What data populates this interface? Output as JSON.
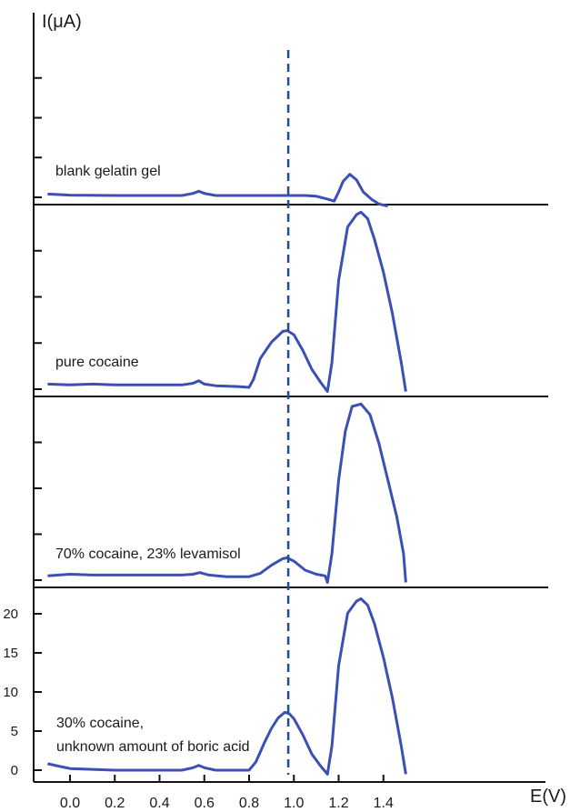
{
  "chart_data": {
    "type": "line",
    "ylabel": "I(μA)",
    "xlabel": "E(V)",
    "xlim": [
      -0.1,
      1.53
    ],
    "ylim": [
      -1.5,
      23
    ],
    "x_ticks": [
      "0.0",
      "0.2",
      "0.4",
      "0.6",
      "0.8",
      "1.0",
      "1.2",
      "1.4"
    ],
    "y_ticks": [
      "0",
      "5",
      "10",
      "15",
      "20"
    ],
    "marker_line_x": 0.975,
    "colors": {
      "trace": "#3c50b4",
      "marker": "#1f4e8c",
      "axis": "#111111"
    },
    "panels": [
      {
        "label": "blank gelatin gel",
        "points": [
          [
            -0.1,
            0.2
          ],
          [
            0,
            0.05
          ],
          [
            0.2,
            0
          ],
          [
            0.4,
            0
          ],
          [
            0.5,
            0
          ],
          [
            0.55,
            0.3
          ],
          [
            0.575,
            0.6
          ],
          [
            0.6,
            0.3
          ],
          [
            0.65,
            0
          ],
          [
            0.8,
            0
          ],
          [
            0.9,
            0
          ],
          [
            1.0,
            0
          ],
          [
            1.05,
            0
          ],
          [
            1.1,
            -0.1
          ],
          [
            1.15,
            -0.5
          ],
          [
            1.18,
            -0.8
          ],
          [
            1.2,
            0.5
          ],
          [
            1.22,
            2.0
          ],
          [
            1.25,
            3.0
          ],
          [
            1.28,
            2.2
          ],
          [
            1.31,
            0.5
          ],
          [
            1.35,
            -0.6
          ],
          [
            1.38,
            -1.2
          ],
          [
            1.42,
            -1.5
          ]
        ]
      },
      {
        "label": "pure cocaine",
        "points": [
          [
            -0.1,
            0.4
          ],
          [
            0,
            0.3
          ],
          [
            0.1,
            0.4
          ],
          [
            0.2,
            0.3
          ],
          [
            0.3,
            0.3
          ],
          [
            0.4,
            0.3
          ],
          [
            0.5,
            0.3
          ],
          [
            0.55,
            0.5
          ],
          [
            0.575,
            0.8
          ],
          [
            0.6,
            0.4
          ],
          [
            0.65,
            0.2
          ],
          [
            0.75,
            0.1
          ],
          [
            0.8,
            0
          ],
          [
            0.82,
            1
          ],
          [
            0.85,
            3.5
          ],
          [
            0.9,
            5.5
          ],
          [
            0.95,
            6.8
          ],
          [
            0.97,
            6.9
          ],
          [
            1.0,
            6.4
          ],
          [
            1.04,
            4.5
          ],
          [
            1.08,
            2.2
          ],
          [
            1.12,
            0.6
          ],
          [
            1.15,
            -0.5
          ],
          [
            1.17,
            3
          ],
          [
            1.2,
            13
          ],
          [
            1.24,
            19.5
          ],
          [
            1.28,
            21
          ],
          [
            1.3,
            21.3
          ],
          [
            1.33,
            20.5
          ],
          [
            1.36,
            18
          ],
          [
            1.4,
            14
          ],
          [
            1.44,
            9
          ],
          [
            1.48,
            3
          ],
          [
            1.5,
            -0.5
          ]
        ]
      },
      {
        "label": "70% cocaine, 23% levamisol",
        "points": [
          [
            -0.1,
            0.3
          ],
          [
            0,
            0.5
          ],
          [
            0.1,
            0.4
          ],
          [
            0.2,
            0.4
          ],
          [
            0.3,
            0.4
          ],
          [
            0.4,
            0.4
          ],
          [
            0.5,
            0.4
          ],
          [
            0.55,
            0.5
          ],
          [
            0.58,
            0.7
          ],
          [
            0.62,
            0.4
          ],
          [
            0.7,
            0.2
          ],
          [
            0.8,
            0.2
          ],
          [
            0.85,
            0.6
          ],
          [
            0.9,
            1.6
          ],
          [
            0.95,
            2.4
          ],
          [
            0.97,
            2.5
          ],
          [
            1.0,
            2.1
          ],
          [
            1.05,
            1.0
          ],
          [
            1.1,
            0.5
          ],
          [
            1.14,
            0.3
          ],
          [
            1.15,
            -0.5
          ],
          [
            1.17,
            3
          ],
          [
            1.2,
            12
          ],
          [
            1.23,
            18
          ],
          [
            1.26,
            21
          ],
          [
            1.3,
            21.3
          ],
          [
            1.34,
            20
          ],
          [
            1.38,
            16.5
          ],
          [
            1.42,
            12
          ],
          [
            1.46,
            7.5
          ],
          [
            1.49,
            3
          ],
          [
            1.5,
            -0.5
          ]
        ]
      },
      {
        "label": "30% cocaine, unknown amount of boric acid",
        "label_line1": "30% cocaine,",
        "label_line2": "unknown amount of boric acid",
        "points": [
          [
            -0.1,
            0.8
          ],
          [
            -0.05,
            0.5
          ],
          [
            0,
            0.2
          ],
          [
            0.1,
            0.1
          ],
          [
            0.2,
            0
          ],
          [
            0.3,
            0
          ],
          [
            0.4,
            0
          ],
          [
            0.5,
            0
          ],
          [
            0.55,
            0.3
          ],
          [
            0.575,
            0.6
          ],
          [
            0.6,
            0.3
          ],
          [
            0.65,
            0
          ],
          [
            0.75,
            0
          ],
          [
            0.8,
            0
          ],
          [
            0.83,
            1
          ],
          [
            0.87,
            3.5
          ],
          [
            0.9,
            5.2
          ],
          [
            0.93,
            6.5
          ],
          [
            0.96,
            7.2
          ],
          [
            0.98,
            7.0
          ],
          [
            1.0,
            6.4
          ],
          [
            1.04,
            4.4
          ],
          [
            1.08,
            2.0
          ],
          [
            1.12,
            0.5
          ],
          [
            1.15,
            -0.5
          ],
          [
            1.17,
            3
          ],
          [
            1.2,
            13
          ],
          [
            1.24,
            19.5
          ],
          [
            1.28,
            21
          ],
          [
            1.3,
            21.3
          ],
          [
            1.33,
            20.5
          ],
          [
            1.36,
            18.2
          ],
          [
            1.4,
            14
          ],
          [
            1.44,
            9
          ],
          [
            1.48,
            3
          ],
          [
            1.5,
            -0.5
          ]
        ]
      }
    ]
  }
}
